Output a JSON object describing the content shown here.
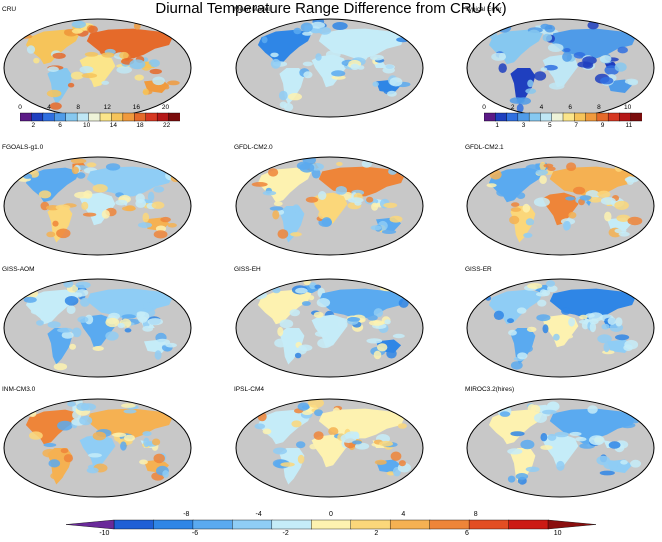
{
  "title": "Diurnal Temperature Range Difference from CRU (K)",
  "panels": [
    {
      "label": "CRU",
      "colormap": "absolute"
    },
    {
      "label": "Mean Model",
      "colormap": "difference"
    },
    {
      "label": "Typical Error",
      "colormap": "error"
    },
    {
      "label": "FGOALS-g1.0",
      "colormap": "difference"
    },
    {
      "label": "GFDL-CM2.0",
      "colormap": "difference"
    },
    {
      "label": "GFDL-CM2.1",
      "colormap": "difference"
    },
    {
      "label": "GISS-AOM",
      "colormap": "difference"
    },
    {
      "label": "GISS-EH",
      "colormap": "difference"
    },
    {
      "label": "GISS-ER",
      "colormap": "difference"
    },
    {
      "label": "INM-CM3.0",
      "colormap": "difference"
    },
    {
      "label": "IPSL-CM4",
      "colormap": "difference"
    },
    {
      "label": "MIROC3.2(hires)",
      "colormap": "difference"
    }
  ],
  "colorbars": {
    "cru": {
      "top_ticks": [
        "0",
        "4",
        "8",
        "12",
        "16",
        "20"
      ],
      "bottom_ticks": [
        "2",
        "6",
        "10",
        "14",
        "18",
        "22"
      ],
      "colors": [
        "#5b1a86",
        "#1f3fbf",
        "#2f6fe0",
        "#4f9be8",
        "#86c8f0",
        "#bfe7f5",
        "#eef3d8",
        "#fbe58a",
        "#f6c45a",
        "#f09a3d",
        "#e56a2a",
        "#d63822",
        "#b51818",
        "#7a0c0c"
      ]
    },
    "error": {
      "top_ticks": [
        "0",
        "2",
        "4",
        "6",
        "8",
        "10"
      ],
      "bottom_ticks": [
        "1",
        "3",
        "5",
        "7",
        "9",
        "11"
      ],
      "colors": [
        "#5b1a86",
        "#1f3fbf",
        "#2f6fe0",
        "#4f9be8",
        "#86c8f0",
        "#bfe7f5",
        "#eef3d8",
        "#fbe58a",
        "#f6c45a",
        "#f09a3d",
        "#e56a2a",
        "#d63822",
        "#b51818",
        "#7a0c0c"
      ]
    },
    "difference": {
      "top_ticks": [
        "-8",
        "-4",
        "0",
        "4",
        "8"
      ],
      "bottom_ticks": [
        "-10",
        "-6",
        "-2",
        "2",
        "6",
        "10"
      ],
      "colors": [
        "#1f5fd6",
        "#2f86e6",
        "#5aaaf0",
        "#8fcdf5",
        "#c5ecf8",
        "#fdf2b0",
        "#fbd77a",
        "#f5b152",
        "#ee8539",
        "#e34e23",
        "#cc1a14"
      ],
      "under_color": "#6a2a9a",
      "over_color": "#8a0e0e"
    }
  },
  "map_colors": {
    "ocean": "#c8c8c8",
    "outline": "#000000"
  }
}
